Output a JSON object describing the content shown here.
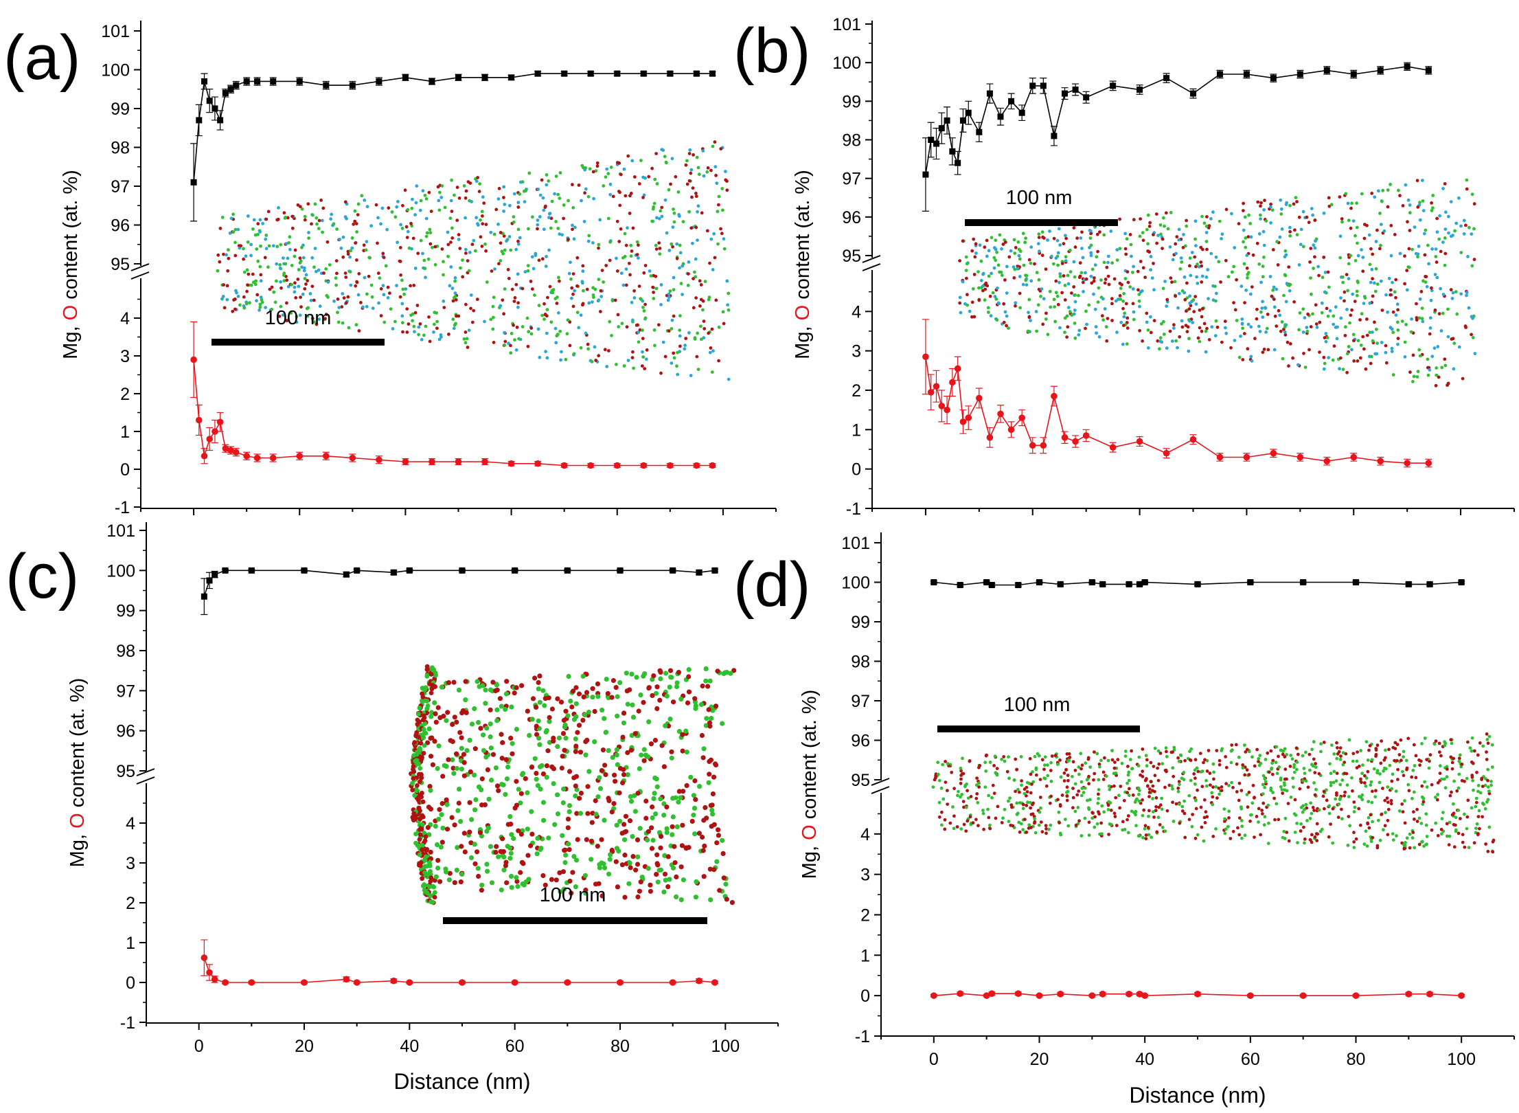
{
  "colors": {
    "mg_series": "#000000",
    "o_series": "#e8141c",
    "atom_green": "#2fc02f",
    "atom_red": "#b01212",
    "atom_blue": "#2aa7d6",
    "scalebar": "#000000"
  },
  "chart_data": [
    {
      "type": "line",
      "panel_label": "(a)",
      "xlabel": "",
      "ylabel_prefix": "Mg, ",
      "ylabel_marker": "O",
      "ylabel_suffix": " content (at. %)",
      "xlim": [
        -10,
        110
      ],
      "upper_ylim": [
        95,
        101
      ],
      "lower_ylim": [
        -1,
        5
      ],
      "upper_yticks": [
        "95",
        "96",
        "97",
        "98",
        "99",
        "100",
        "101"
      ],
      "lower_yticks": [
        "-1",
        "0",
        "1",
        "2",
        "3",
        "4"
      ],
      "xticks": [],
      "inset_scale_text": "100 nm",
      "series": [
        {
          "name": "Mg",
          "x": [
            0,
            1,
            2,
            3,
            4,
            5,
            6,
            7,
            8,
            10,
            12,
            15,
            20,
            25,
            30,
            35,
            40,
            45,
            50,
            55,
            60,
            65,
            70,
            75,
            80,
            85,
            90,
            95,
            98
          ],
          "values": [
            97.1,
            98.7,
            99.7,
            99.2,
            99.0,
            98.7,
            99.4,
            99.5,
            99.6,
            99.7,
            99.7,
            99.7,
            99.7,
            99.6,
            99.6,
            99.7,
            99.8,
            99.7,
            99.8,
            99.8,
            99.8,
            99.9,
            99.9,
            99.9,
            99.9,
            99.9,
            99.9,
            99.9,
            99.9
          ],
          "err": [
            1.0,
            0.4,
            0.2,
            0.3,
            0.3,
            0.25,
            0.1,
            0.1,
            0.1,
            0.1,
            0.1,
            0.1,
            0.1,
            0.1,
            0.1,
            0.1,
            0.08,
            0.08,
            0.08,
            0.08,
            0.06,
            0.06,
            0.05,
            0.05,
            0.05,
            0.05,
            0.05,
            0.05,
            0.05
          ]
        },
        {
          "name": "O",
          "x": [
            0,
            1,
            2,
            3,
            4,
            5,
            6,
            7,
            8,
            10,
            12,
            15,
            20,
            25,
            30,
            35,
            40,
            45,
            50,
            55,
            60,
            65,
            70,
            75,
            80,
            85,
            90,
            95,
            98
          ],
          "values": [
            2.9,
            1.3,
            0.35,
            0.8,
            1.0,
            1.25,
            0.55,
            0.5,
            0.45,
            0.35,
            0.3,
            0.3,
            0.35,
            0.35,
            0.3,
            0.25,
            0.2,
            0.2,
            0.2,
            0.2,
            0.15,
            0.15,
            0.1,
            0.1,
            0.1,
            0.1,
            0.1,
            0.1,
            0.1
          ],
          "err": [
            1.0,
            0.4,
            0.2,
            0.3,
            0.3,
            0.25,
            0.1,
            0.1,
            0.1,
            0.1,
            0.1,
            0.1,
            0.1,
            0.1,
            0.1,
            0.1,
            0.08,
            0.08,
            0.08,
            0.08,
            0.06,
            0.06,
            0.05,
            0.05,
            0.05,
            0.05,
            0.05,
            0.05,
            0.05
          ]
        }
      ]
    },
    {
      "type": "line",
      "panel_label": "(b)",
      "xlabel": "",
      "ylabel_prefix": "Mg, ",
      "ylabel_marker": "O",
      "ylabel_suffix": " content (at. %)",
      "xlim": [
        -10,
        110
      ],
      "upper_ylim": [
        95,
        101
      ],
      "lower_ylim": [
        -1,
        5
      ],
      "upper_yticks": [
        "95",
        "96",
        "97",
        "98",
        "99",
        "100",
        "101"
      ],
      "lower_yticks": [
        "-1",
        "0",
        "1",
        "2",
        "3",
        "4"
      ],
      "xticks": [],
      "inset_scale_text": "100 nm",
      "series": [
        {
          "name": "Mg",
          "x": [
            0,
            1,
            2,
            3,
            4,
            5,
            6,
            7,
            8,
            10,
            12,
            14,
            16,
            18,
            20,
            22,
            24,
            26,
            28,
            30,
            35,
            40,
            45,
            50,
            55,
            60,
            65,
            70,
            75,
            80,
            85,
            90,
            94
          ],
          "values": [
            97.1,
            98.0,
            97.9,
            98.3,
            98.5,
            97.7,
            97.4,
            98.5,
            98.7,
            98.2,
            99.2,
            98.6,
            99.0,
            98.7,
            99.4,
            99.4,
            98.1,
            99.2,
            99.3,
            99.1,
            99.4,
            99.3,
            99.6,
            99.2,
            99.7,
            99.7,
            99.6,
            99.7,
            99.8,
            99.7,
            99.8,
            99.9,
            99.8
          ],
          "err": [
            0.95,
            0.45,
            0.4,
            0.4,
            0.35,
            0.35,
            0.3,
            0.3,
            0.3,
            0.25,
            0.25,
            0.22,
            0.2,
            0.2,
            0.2,
            0.2,
            0.25,
            0.15,
            0.15,
            0.15,
            0.12,
            0.12,
            0.12,
            0.12,
            0.1,
            0.1,
            0.1,
            0.1,
            0.1,
            0.1,
            0.1,
            0.1,
            0.1
          ]
        },
        {
          "name": "O",
          "x": [
            0,
            1,
            2,
            3,
            4,
            5,
            6,
            7,
            8,
            10,
            12,
            14,
            16,
            18,
            20,
            22,
            24,
            26,
            28,
            30,
            35,
            40,
            45,
            50,
            55,
            60,
            65,
            70,
            75,
            80,
            85,
            90,
            94
          ],
          "values": [
            2.85,
            1.95,
            2.1,
            1.6,
            1.5,
            2.2,
            2.55,
            1.2,
            1.3,
            1.8,
            0.8,
            1.4,
            1.0,
            1.3,
            0.6,
            0.6,
            1.85,
            0.8,
            0.7,
            0.85,
            0.55,
            0.7,
            0.4,
            0.75,
            0.3,
            0.3,
            0.4,
            0.3,
            0.2,
            0.3,
            0.2,
            0.15,
            0.15
          ],
          "err": [
            0.95,
            0.45,
            0.4,
            0.4,
            0.35,
            0.35,
            0.3,
            0.3,
            0.3,
            0.25,
            0.25,
            0.22,
            0.2,
            0.2,
            0.2,
            0.2,
            0.25,
            0.15,
            0.15,
            0.15,
            0.12,
            0.12,
            0.12,
            0.12,
            0.1,
            0.1,
            0.1,
            0.1,
            0.1,
            0.1,
            0.1,
            0.1,
            0.1
          ]
        }
      ]
    },
    {
      "type": "line",
      "panel_label": "(c)",
      "xlabel": "Distance (nm)",
      "ylabel_prefix": "Mg, ",
      "ylabel_marker": "O",
      "ylabel_suffix": " content (at. %)",
      "xlim": [
        -10,
        110
      ],
      "upper_ylim": [
        95,
        101
      ],
      "lower_ylim": [
        -1,
        5
      ],
      "upper_yticks": [
        "95",
        "96",
        "97",
        "98",
        "99",
        "100",
        "101"
      ],
      "lower_yticks": [
        "-1",
        "0",
        "1",
        "2",
        "3",
        "4"
      ],
      "xticks": [
        "0",
        "20",
        "40",
        "60",
        "80",
        "100"
      ],
      "inset_scale_text": "100 nm",
      "series": [
        {
          "name": "Mg",
          "x": [
            1,
            2,
            3,
            5,
            10,
            20,
            28,
            30,
            37,
            40,
            50,
            60,
            70,
            80,
            90,
            95,
            98
          ],
          "values": [
            99.35,
            99.75,
            99.9,
            100.0,
            100.0,
            100.0,
            99.9,
            100.0,
            99.95,
            100.0,
            100.0,
            100.0,
            100.0,
            100.0,
            100.0,
            99.95,
            100.0
          ],
          "err": [
            0.45,
            0.2,
            0.08,
            0.03,
            0.03,
            0.03,
            0.06,
            0.03,
            0.05,
            0.03,
            0.03,
            0.03,
            0.03,
            0.03,
            0.03,
            0.05,
            0.03
          ]
        },
        {
          "name": "O",
          "x": [
            1,
            2,
            3,
            5,
            10,
            20,
            28,
            30,
            37,
            40,
            50,
            60,
            70,
            80,
            90,
            95,
            98
          ],
          "values": [
            0.62,
            0.25,
            0.08,
            0.0,
            0.0,
            0.0,
            0.08,
            0.0,
            0.04,
            0.0,
            0.0,
            0.0,
            0.0,
            0.0,
            0.0,
            0.04,
            0.0
          ],
          "err": [
            0.45,
            0.2,
            0.08,
            0.03,
            0.03,
            0.03,
            0.06,
            0.03,
            0.05,
            0.03,
            0.03,
            0.03,
            0.03,
            0.03,
            0.03,
            0.05,
            0.03
          ]
        }
      ]
    },
    {
      "type": "line",
      "panel_label": "(d)",
      "xlabel": "Distance (nm)",
      "ylabel_prefix": "Mg, ",
      "ylabel_marker": "O",
      "ylabel_suffix": " content (at. %)",
      "xlim": [
        -10,
        110
      ],
      "upper_ylim": [
        95,
        101
      ],
      "lower_ylim": [
        -1,
        5
      ],
      "upper_yticks": [
        "95",
        "96",
        "97",
        "98",
        "99",
        "100",
        "101"
      ],
      "lower_yticks": [
        "-1",
        "0",
        "1",
        "2",
        "3",
        "4"
      ],
      "xticks": [
        "0",
        "20",
        "40",
        "60",
        "80",
        "100"
      ],
      "inset_scale_text": "100 nm",
      "series": [
        {
          "name": "Mg",
          "x": [
            0,
            5,
            10,
            11,
            16,
            20,
            24,
            30,
            32,
            37,
            39,
            40,
            50,
            60,
            70,
            80,
            90,
            94,
            100
          ],
          "values": [
            100.0,
            99.93,
            100.0,
            99.93,
            99.93,
            100.0,
            99.95,
            100.0,
            99.95,
            99.95,
            99.95,
            100.0,
            99.95,
            100.0,
            100.0,
            100.0,
            99.95,
            99.95,
            100.0
          ],
          "err": [
            0.03,
            0.04,
            0.03,
            0.04,
            0.04,
            0.03,
            0.04,
            0.03,
            0.04,
            0.04,
            0.04,
            0.03,
            0.04,
            0.03,
            0.03,
            0.03,
            0.04,
            0.04,
            0.03
          ]
        },
        {
          "name": "O",
          "x": [
            0,
            5,
            10,
            11,
            16,
            20,
            24,
            30,
            32,
            37,
            39,
            40,
            50,
            60,
            70,
            80,
            90,
            94,
            100
          ],
          "values": [
            0.0,
            0.05,
            0.0,
            0.05,
            0.05,
            0.0,
            0.04,
            0.0,
            0.04,
            0.04,
            0.04,
            0.0,
            0.04,
            0.0,
            0.0,
            0.0,
            0.04,
            0.04,
            0.0
          ],
          "err": [
            0.03,
            0.04,
            0.03,
            0.04,
            0.04,
            0.03,
            0.04,
            0.03,
            0.04,
            0.04,
            0.04,
            0.03,
            0.04,
            0.03,
            0.03,
            0.03,
            0.04,
            0.04,
            0.03
          ]
        }
      ]
    }
  ]
}
